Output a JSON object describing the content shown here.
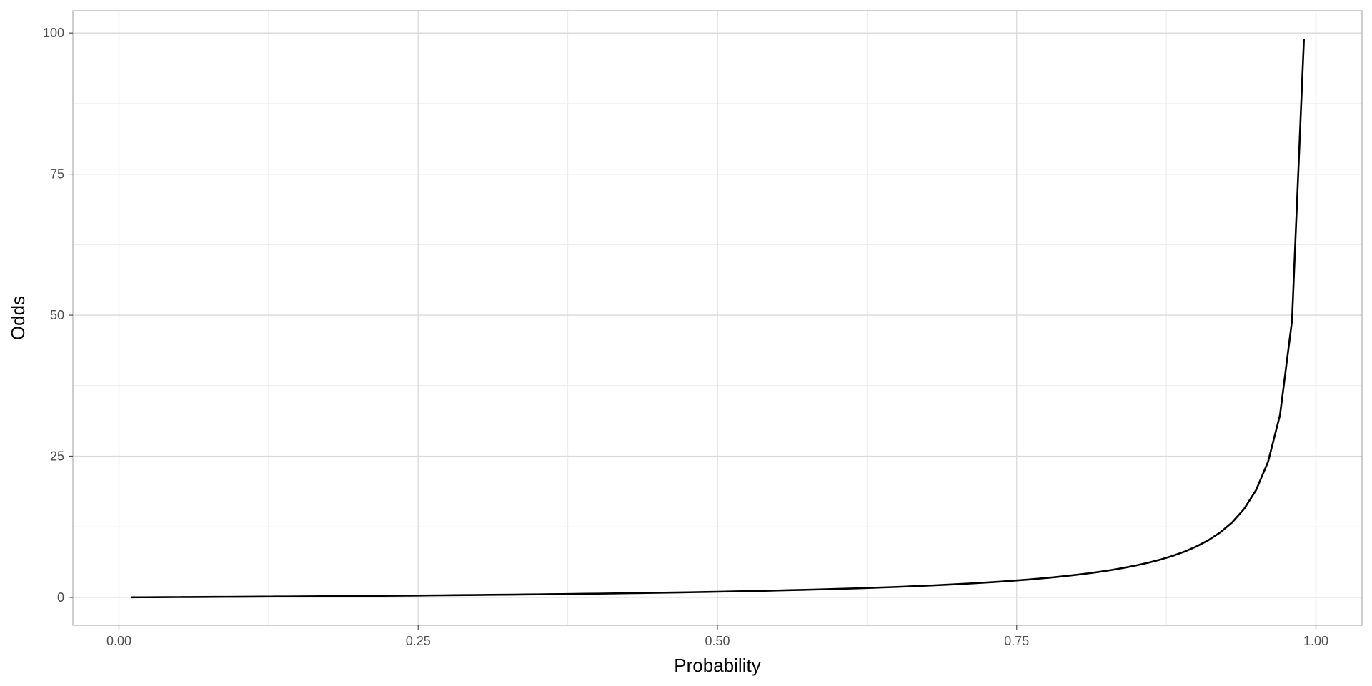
{
  "chart_data": {
    "type": "line",
    "title": "",
    "xlabel": "Probability",
    "ylabel": "Odds",
    "xlim": [
      -0.0385,
      1.0385
    ],
    "ylim": [
      -4.95,
      103.95
    ],
    "x_ticks": [
      0.0,
      0.25,
      0.5,
      0.75,
      1.0
    ],
    "x_tick_labels": [
      "0.00",
      "0.25",
      "0.50",
      "0.75",
      "1.00"
    ],
    "y_ticks": [
      0,
      25,
      50,
      75,
      100
    ],
    "y_tick_labels": [
      "0",
      "25",
      "50",
      "75",
      "100"
    ],
    "grid": true,
    "series": [
      {
        "color": "#000000",
        "x": [
          0.01,
          0.02,
          0.03,
          0.04,
          0.05,
          0.06,
          0.07,
          0.08,
          0.09,
          0.1,
          0.11,
          0.12,
          0.13,
          0.14,
          0.15,
          0.16,
          0.17,
          0.18,
          0.19,
          0.2,
          0.21,
          0.22,
          0.23,
          0.24,
          0.25,
          0.26,
          0.27,
          0.28,
          0.29,
          0.3,
          0.31,
          0.32,
          0.33,
          0.34,
          0.35,
          0.36,
          0.37,
          0.38,
          0.39,
          0.4,
          0.41,
          0.42,
          0.43,
          0.44,
          0.45,
          0.46,
          0.47,
          0.48,
          0.49,
          0.5,
          0.51,
          0.52,
          0.53,
          0.54,
          0.55,
          0.56,
          0.57,
          0.58,
          0.59,
          0.6,
          0.61,
          0.62,
          0.63,
          0.64,
          0.65,
          0.66,
          0.67,
          0.68,
          0.69,
          0.7,
          0.71,
          0.72,
          0.73,
          0.74,
          0.75,
          0.76,
          0.77,
          0.78,
          0.79,
          0.8,
          0.81,
          0.82,
          0.83,
          0.84,
          0.85,
          0.86,
          0.87,
          0.88,
          0.89,
          0.9,
          0.91,
          0.92,
          0.93,
          0.94,
          0.95,
          0.96,
          0.97,
          0.98,
          0.99
        ],
        "y": [
          0.0101,
          0.0204,
          0.0309,
          0.0417,
          0.0526,
          0.0638,
          0.0753,
          0.087,
          0.0989,
          0.1111,
          0.1236,
          0.1364,
          0.1494,
          0.1628,
          0.1765,
          0.1905,
          0.2048,
          0.2195,
          0.2346,
          0.25,
          0.2658,
          0.2821,
          0.2987,
          0.3158,
          0.3333,
          0.3514,
          0.3699,
          0.3889,
          0.4085,
          0.4286,
          0.4493,
          0.4706,
          0.4925,
          0.5152,
          0.5385,
          0.5625,
          0.5873,
          0.6129,
          0.6393,
          0.6667,
          0.6949,
          0.7241,
          0.7544,
          0.7857,
          0.8182,
          0.8519,
          0.8868,
          0.9231,
          0.9608,
          1.0,
          1.0408,
          1.0833,
          1.1277,
          1.1739,
          1.2222,
          1.2727,
          1.3256,
          1.381,
          1.439,
          1.5,
          1.5641,
          1.6316,
          1.7027,
          1.7778,
          1.8571,
          1.9412,
          2.0303,
          2.125,
          2.2258,
          2.3333,
          2.4483,
          2.5714,
          2.7037,
          2.8462,
          3.0,
          3.1667,
          3.3478,
          3.5455,
          3.7619,
          4.0,
          4.2632,
          4.5556,
          4.8824,
          5.25,
          5.6667,
          6.1429,
          6.6923,
          7.3333,
          8.0909,
          9.0,
          10.1111,
          11.5,
          13.2857,
          15.6667,
          19.0,
          24.0,
          32.3333,
          49.0,
          99.0
        ]
      }
    ]
  }
}
